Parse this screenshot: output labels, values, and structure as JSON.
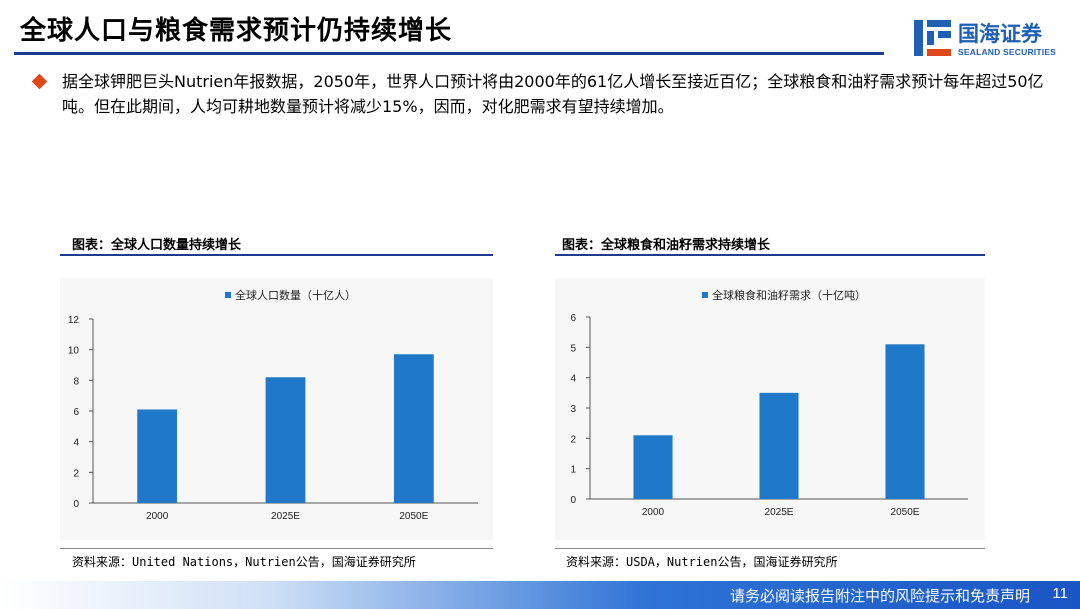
{
  "slide": {
    "title": "全球人口与粮食需求预计仍持续增长",
    "logo": {
      "cn": "国海证券",
      "en": "SEALAND SECURITIES"
    },
    "intro": "据全球钾肥巨头Nutrien年报数据，2050年，世界人口预计将由2000年的61亿人增长至接近百亿；全球粮食和油籽需求预计每年超过50亿吨。但在此期间，人均可耕地数量预计将减少15%，因而，对化肥需求有望持续增加。",
    "footer": "请务必阅读报告附注中的风险提示和免责声明",
    "page": "11"
  },
  "figures": [
    {
      "title": "图表：全球人口数量持续增长",
      "source": "资料来源：United Nations，Nutrien公告，国海证券研究所"
    },
    {
      "title": "图表：全球粮食和油籽需求持续增长",
      "source": "资料来源：USDA，Nutrien公告，国海证券研究所"
    }
  ],
  "colors": {
    "bar": "#1f78c8",
    "accent": "#1f3b8f",
    "bullet": "#e0481c"
  },
  "chart_data": [
    {
      "type": "bar",
      "categories": [
        "2000",
        "2025E",
        "2050E"
      ],
      "series": [
        {
          "name": "全球人口数量（十亿人）",
          "values": [
            6.1,
            8.2,
            9.7
          ]
        }
      ],
      "ylim": [
        0,
        12
      ],
      "yticks": [
        0,
        2,
        4,
        6,
        8,
        10,
        12
      ],
      "legend": "top-center",
      "grid": false
    },
    {
      "type": "bar",
      "categories": [
        "2000",
        "2025E",
        "2050E"
      ],
      "series": [
        {
          "name": "全球粮食和油籽需求（十亿吨）",
          "values": [
            2.1,
            3.5,
            5.1
          ]
        }
      ],
      "ylim": [
        0,
        6
      ],
      "yticks": [
        0,
        1,
        2,
        3,
        4,
        5,
        6
      ],
      "legend": "top-center",
      "grid": false
    }
  ]
}
